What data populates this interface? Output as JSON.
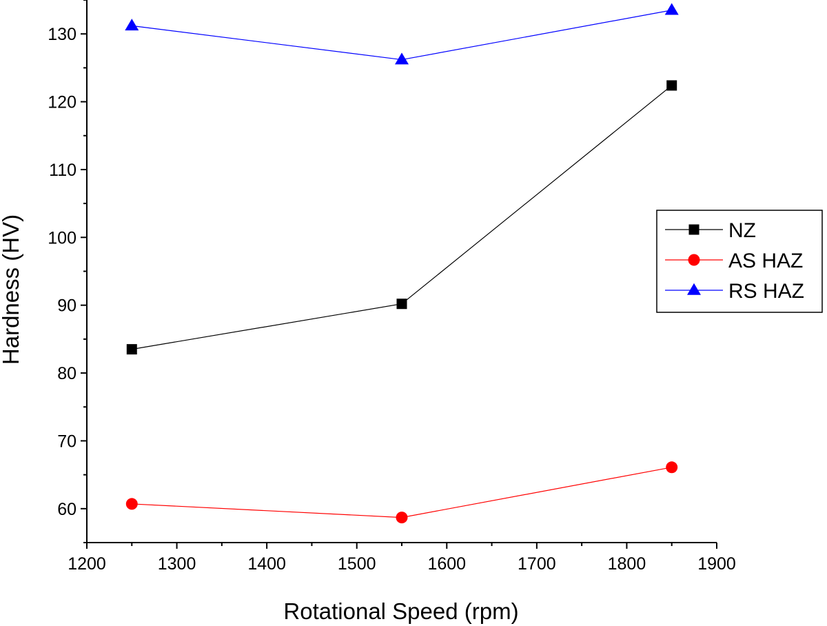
{
  "chart_data": {
    "type": "line",
    "title": "",
    "xlabel": "Rotational Speed (rpm)",
    "ylabel": "Hardness (HV)",
    "xlim": [
      1200,
      1900
    ],
    "ylim": [
      55,
      135
    ],
    "xticks": [
      1200,
      1300,
      1400,
      1500,
      1600,
      1700,
      1800,
      1900
    ],
    "yticks": [
      60,
      70,
      80,
      90,
      100,
      110,
      120,
      130
    ],
    "x_tick_labels": [
      "1200",
      "1300",
      "1400",
      "1500",
      "1600",
      "1700",
      "1800",
      "1900"
    ],
    "y_tick_labels": [
      "60",
      "70",
      "80",
      "90",
      "100",
      "110",
      "120",
      "130"
    ],
    "grid": false,
    "legend_position": "right",
    "x": [
      1250,
      1550,
      1850
    ],
    "series": [
      {
        "name": "NZ",
        "values": [
          83.5,
          90.2,
          122.4
        ],
        "color": "#000000",
        "marker": "square"
      },
      {
        "name": "AS HAZ",
        "values": [
          60.7,
          58.7,
          66.1
        ],
        "color": "#ff0000",
        "marker": "circle"
      },
      {
        "name": "RS HAZ",
        "values": [
          131.2,
          126.2,
          133.5
        ],
        "color": "#0000ff",
        "marker": "triangle"
      }
    ]
  }
}
